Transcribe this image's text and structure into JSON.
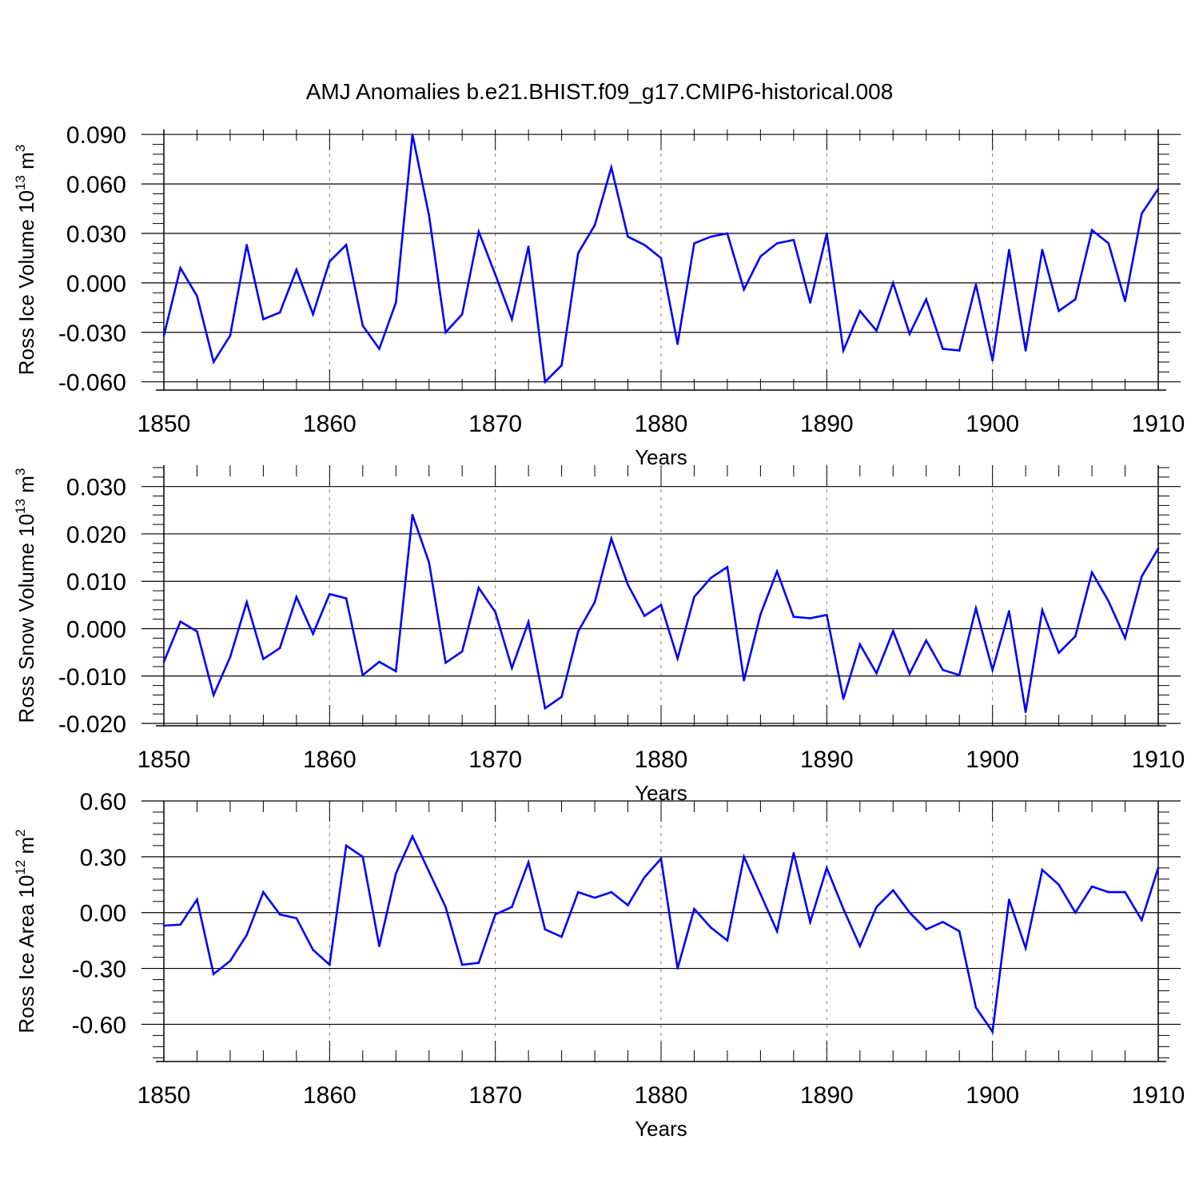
{
  "title": "AMJ Anomalies b.e21.BHIST.f09_g17.CMIP6-historical.008",
  "colors": {
    "line": "#0000ff",
    "axis": "#000000",
    "grid": "#808080",
    "background": "#ffffff"
  },
  "chart_data": [
    {
      "type": "line",
      "ylabel_main": "Ross Ice Volume 10",
      "ylabel_exp": "13",
      "ylabel_unit": " m",
      "ylabel_unit_exp": "3",
      "xlabel": "Years",
      "xlim": [
        1850,
        1910
      ],
      "ylim": [
        -0.065,
        0.093
      ],
      "xticks": [
        1850,
        1860,
        1870,
        1880,
        1890,
        1900,
        1910
      ],
      "xtick_labels": [
        "1850",
        "1860",
        "1870",
        "1880",
        "1890",
        "1900",
        "1910"
      ],
      "yticks": [
        -0.06,
        -0.03,
        0.0,
        0.03,
        0.06,
        0.09
      ],
      "ytick_labels": [
        "-0.060",
        "-0.030",
        "0.000",
        "0.030",
        "0.060",
        "0.090"
      ],
      "grid": "vertical dashed at decades",
      "x": [
        1850,
        1851,
        1852,
        1853,
        1854,
        1855,
        1856,
        1857,
        1858,
        1859,
        1860,
        1861,
        1862,
        1863,
        1864,
        1865,
        1866,
        1867,
        1868,
        1869,
        1870,
        1871,
        1872,
        1873,
        1874,
        1875,
        1876,
        1877,
        1878,
        1879,
        1880,
        1881,
        1882,
        1883,
        1884,
        1885,
        1886,
        1887,
        1888,
        1889,
        1890,
        1891,
        1892,
        1893,
        1894,
        1895,
        1896,
        1897,
        1898,
        1899,
        1900,
        1901,
        1902,
        1903,
        1904,
        1905,
        1906,
        1907,
        1908,
        1909,
        1910
      ],
      "values": [
        -0.032,
        0.009,
        -0.008,
        -0.048,
        -0.032,
        0.023,
        -0.022,
        -0.018,
        0.008,
        -0.019,
        0.013,
        0.023,
        -0.026,
        -0.04,
        -0.012,
        0.09,
        0.041,
        -0.03,
        -0.019,
        0.031,
        0.005,
        -0.022,
        0.022,
        -0.06,
        -0.05,
        0.018,
        0.035,
        0.07,
        0.028,
        0.023,
        0.015,
        -0.037,
        0.024,
        0.028,
        0.03,
        -0.004,
        0.016,
        0.024,
        0.026,
        -0.012,
        0.03,
        -0.041,
        -0.017,
        -0.029,
        0.0,
        -0.031,
        -0.01,
        -0.04,
        -0.041,
        -0.001,
        -0.047,
        0.02,
        -0.041,
        0.02,
        -0.017,
        -0.01,
        0.032,
        0.024,
        -0.011,
        0.042,
        0.057
      ]
    },
    {
      "type": "line",
      "ylabel_main": "Ross Snow Volume 10",
      "ylabel_exp": "13",
      "ylabel_unit": " m",
      "ylabel_unit_exp": "3",
      "xlabel": "Years",
      "xlim": [
        1850,
        1910
      ],
      "ylim": [
        -0.0205,
        0.0345
      ],
      "xticks": [
        1850,
        1860,
        1870,
        1880,
        1890,
        1900,
        1910
      ],
      "xtick_labels": [
        "1850",
        "1860",
        "1870",
        "1880",
        "1890",
        "1900",
        "1910"
      ],
      "yticks": [
        -0.02,
        -0.01,
        0.0,
        0.01,
        0.02,
        0.03
      ],
      "ytick_labels": [
        "-0.020",
        "-0.010",
        "0.000",
        "0.010",
        "0.020",
        "0.030"
      ],
      "grid": "vertical dashed at decades",
      "x": [
        1850,
        1851,
        1852,
        1853,
        1854,
        1855,
        1856,
        1857,
        1858,
        1859,
        1860,
        1861,
        1862,
        1863,
        1864,
        1865,
        1866,
        1867,
        1868,
        1869,
        1870,
        1871,
        1872,
        1873,
        1874,
        1875,
        1876,
        1877,
        1878,
        1879,
        1880,
        1881,
        1882,
        1883,
        1884,
        1885,
        1886,
        1887,
        1888,
        1889,
        1890,
        1891,
        1892,
        1893,
        1894,
        1895,
        1896,
        1897,
        1898,
        1899,
        1900,
        1901,
        1902,
        1903,
        1904,
        1905,
        1906,
        1907,
        1908,
        1909,
        1910
      ],
      "values": [
        -0.007,
        0.0015,
        -0.0006,
        -0.014,
        -0.006,
        0.0056,
        -0.0064,
        -0.0041,
        0.0067,
        -0.0011,
        0.0073,
        0.0064,
        -0.0098,
        -0.007,
        -0.009,
        0.024,
        0.014,
        -0.0072,
        -0.0048,
        0.0086,
        0.0035,
        -0.0083,
        0.0014,
        -0.0168,
        -0.0144,
        -0.0006,
        0.0056,
        0.019,
        0.0093,
        0.0027,
        0.005,
        -0.0063,
        0.0067,
        0.0107,
        0.013,
        -0.0109,
        0.003,
        0.0121,
        0.0025,
        0.0022,
        0.0029,
        -0.0148,
        -0.0033,
        -0.0094,
        -0.0005,
        -0.0095,
        -0.0025,
        -0.0087,
        -0.0098,
        0.0043,
        -0.0087,
        0.0037,
        -0.0176,
        0.0039,
        -0.0051,
        -0.0016,
        0.0119,
        0.0058,
        -0.002,
        0.011,
        0.0169
      ]
    },
    {
      "type": "line",
      "ylabel_main": "Ross Ice Area 10",
      "ylabel_exp": "12",
      "ylabel_unit": " m",
      "ylabel_unit_exp": "2",
      "xlabel": "Years",
      "xlim": [
        1850,
        1910
      ],
      "ylim": [
        -0.8,
        0.6
      ],
      "xticks": [
        1850,
        1860,
        1870,
        1880,
        1890,
        1900,
        1910
      ],
      "xtick_labels": [
        "1850",
        "1860",
        "1870",
        "1880",
        "1890",
        "1900",
        "1910"
      ],
      "yticks": [
        -0.6,
        -0.3,
        0.0,
        0.3,
        0.6
      ],
      "ytick_labels": [
        "-0.60",
        "-0.30",
        "0.00",
        "0.30",
        "0.60"
      ],
      "grid": "vertical dashed at decades",
      "x": [
        1850,
        1851,
        1852,
        1853,
        1854,
        1855,
        1856,
        1857,
        1858,
        1859,
        1860,
        1861,
        1862,
        1863,
        1864,
        1865,
        1866,
        1867,
        1868,
        1869,
        1870,
        1871,
        1872,
        1873,
        1874,
        1875,
        1876,
        1877,
        1878,
        1879,
        1880,
        1881,
        1882,
        1883,
        1884,
        1885,
        1886,
        1887,
        1888,
        1889,
        1890,
        1891,
        1892,
        1893,
        1894,
        1895,
        1896,
        1897,
        1898,
        1899,
        1900,
        1901,
        1902,
        1903,
        1904,
        1905,
        1906,
        1907,
        1908,
        1909,
        1910
      ],
      "values": [
        -0.07,
        -0.065,
        0.07,
        -0.33,
        -0.26,
        -0.12,
        0.11,
        -0.01,
        -0.03,
        -0.2,
        -0.28,
        0.36,
        0.3,
        -0.18,
        0.21,
        0.41,
        0.22,
        0.03,
        -0.28,
        -0.27,
        -0.01,
        0.03,
        0.27,
        -0.09,
        -0.13,
        0.11,
        0.08,
        0.11,
        0.04,
        0.19,
        0.29,
        -0.3,
        0.02,
        -0.08,
        -0.15,
        0.3,
        0.1,
        -0.1,
        0.32,
        -0.05,
        0.24,
        0.02,
        -0.18,
        0.03,
        0.12,
        0.0,
        -0.09,
        -0.05,
        -0.1,
        -0.51,
        -0.64,
        0.07,
        -0.19,
        0.23,
        0.15,
        0.0,
        0.14,
        0.11,
        0.11,
        -0.04,
        0.24
      ]
    }
  ]
}
